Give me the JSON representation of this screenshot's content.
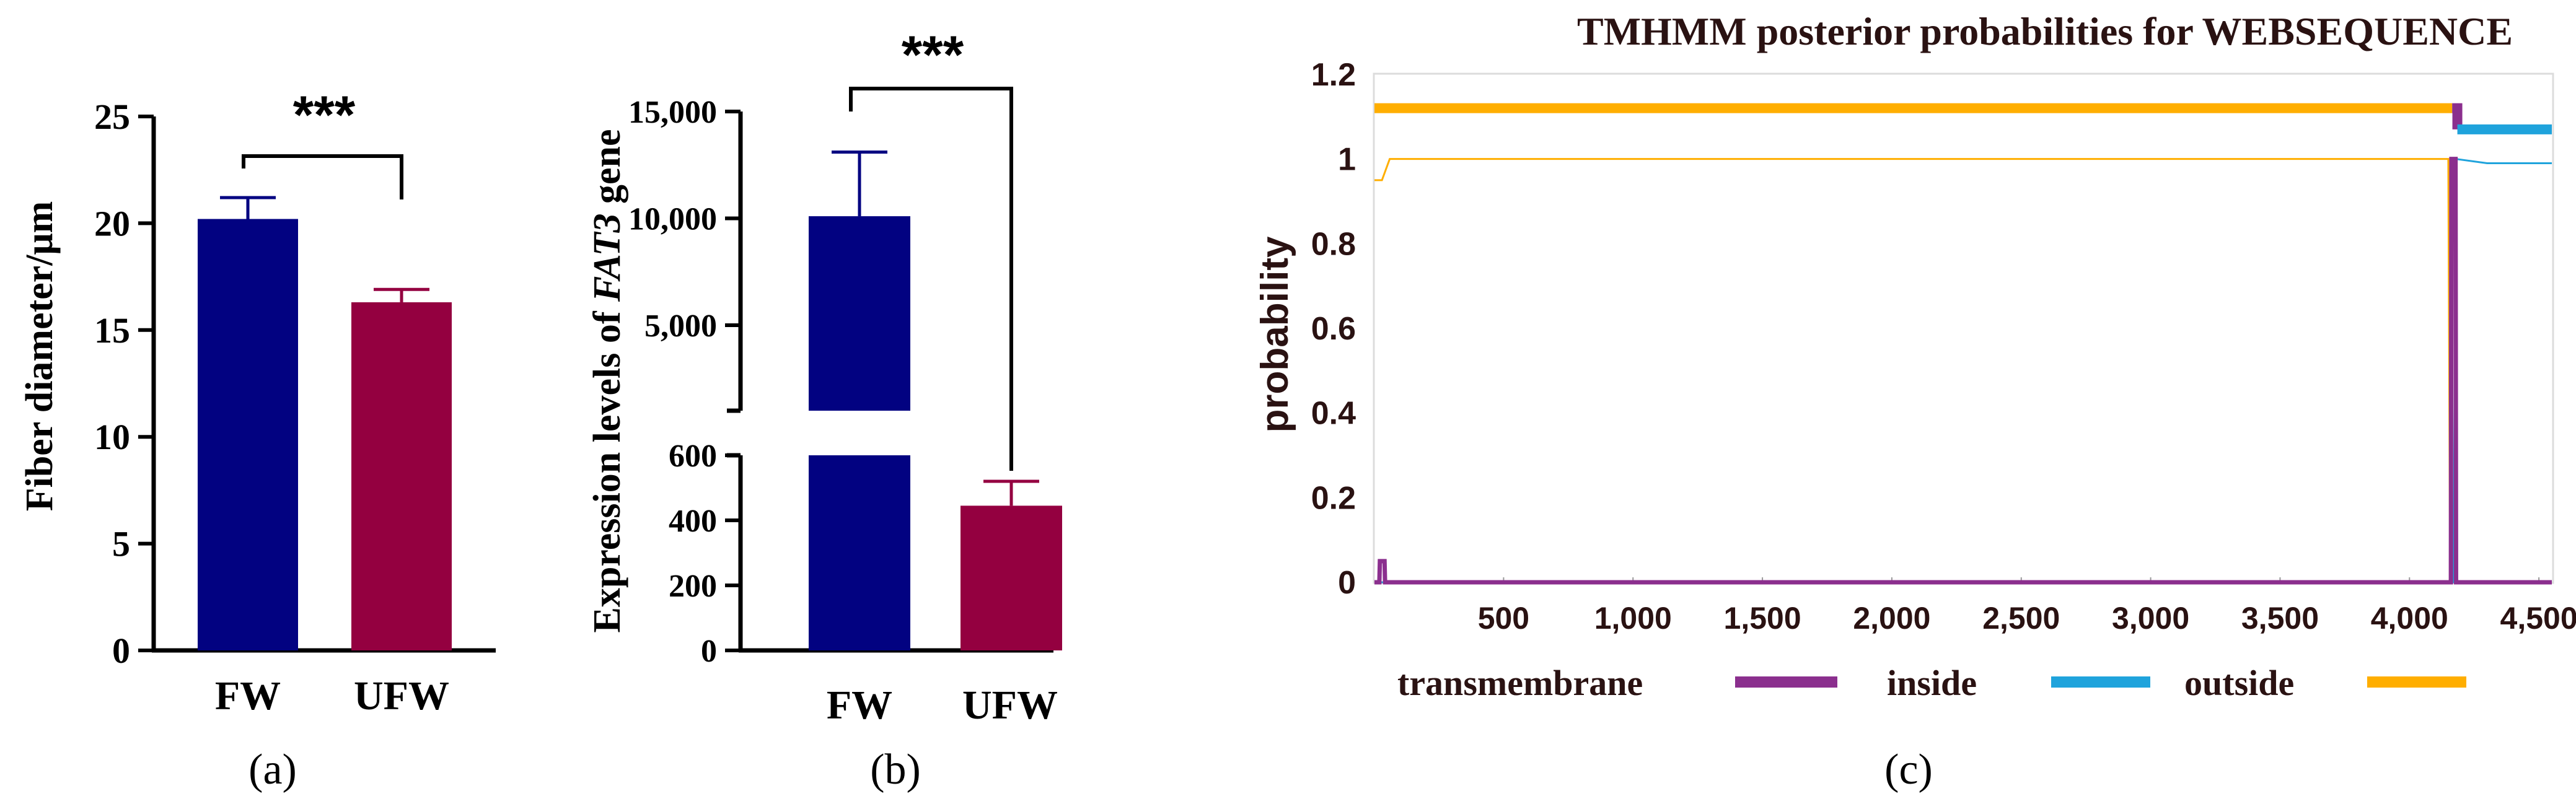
{
  "colors": {
    "fw": "#020281",
    "ufw": "#940040",
    "axis": "#000000",
    "tm": "#8b2f8e",
    "inside": "#1fa3dc",
    "outside": "#ffae00",
    "title_text": "#2a1212"
  },
  "panels": {
    "a": {
      "label": "(a)"
    },
    "b": {
      "label": "(b)"
    },
    "c": {
      "label": "(c)"
    }
  },
  "chart_data": [
    {
      "id": "a",
      "type": "bar",
      "title": "",
      "xlabel": "",
      "ylabel": "Fiber diameter/μm",
      "ylim": [
        0,
        25
      ],
      "yticks": [
        0,
        5,
        10,
        15,
        20,
        25
      ],
      "ytick_labels": [
        "0",
        "5",
        "10",
        "15",
        "20",
        "25"
      ],
      "categories": [
        "FW",
        "UFW"
      ],
      "values": [
        20.2,
        16.3
      ],
      "errors": [
        1.0,
        0.6
      ],
      "significance": "***"
    },
    {
      "id": "b",
      "type": "bar",
      "title": "",
      "xlabel": "",
      "ylabel_prefix": "Expression levels of ",
      "ylabel_gene": "FAT3",
      "ylabel_suffix": " gene",
      "axis_break": true,
      "upper_ylim": [
        1000,
        15000
      ],
      "upper_ticks": [
        5000,
        10000,
        15000
      ],
      "upper_tick_labels": [
        "5,000",
        "10,000",
        "15,000"
      ],
      "lower_ylim": [
        0,
        600
      ],
      "lower_ticks": [
        0,
        200,
        400,
        600
      ],
      "lower_tick_labels": [
        "0",
        "200",
        "400",
        "600"
      ],
      "categories": [
        "FW",
        "UFW"
      ],
      "values": [
        10100,
        445
      ],
      "errors": [
        3000,
        75
      ],
      "significance": "***"
    },
    {
      "id": "c",
      "type": "line",
      "title": "TMHMM posterior probabilities for WEBSEQUENCE",
      "xlabel": "",
      "ylabel": "probability",
      "xlim": [
        1,
        4550
      ],
      "ylim": [
        0,
        1.2
      ],
      "xticks": [
        500,
        1000,
        1500,
        2000,
        2500,
        3000,
        3500,
        4000,
        4500
      ],
      "xtick_labels": [
        "500",
        "1,000",
        "1,500",
        "2,000",
        "2,500",
        "3,000",
        "3,500",
        "4,000",
        "4,500"
      ],
      "yticks": [
        0,
        0.2,
        0.4,
        0.6,
        0.8,
        1,
        1.2
      ],
      "ytick_labels": [
        "0",
        "0.2",
        "0.4",
        "0.6",
        "0.8",
        "1",
        "1.2"
      ],
      "legend": [
        "transmembrane",
        "inside",
        "outside"
      ],
      "series": [
        {
          "name": "outside",
          "x": [
            1,
            30,
            60,
            4150,
            4157,
            4550
          ],
          "y": [
            0.95,
            0.95,
            1.0,
            1.0,
            0.0,
            0.0
          ]
        },
        {
          "name": "inside",
          "x": [
            1,
            4170,
            4180,
            4300,
            4550
          ],
          "y": [
            0.0,
            0.0,
            1.0,
            0.99,
            0.99
          ]
        },
        {
          "name": "transmembrane",
          "x": [
            1,
            20,
            22,
            40,
            42,
            4160,
            4162,
            4178,
            4180,
            4550
          ],
          "y": [
            0.0,
            0.0,
            0.05,
            0.05,
            0.0,
            0.0,
            1.0,
            1.0,
            0.0,
            0.0
          ]
        },
        {
          "name": "outside_topology",
          "x": [
            1,
            4165
          ],
          "y": [
            1.12,
            1.12
          ]
        },
        {
          "name": "transmembrane_topology",
          "x": [
            4165,
            4185
          ],
          "y": [
            1.12,
            1.1
          ]
        },
        {
          "name": "inside_topology",
          "x": [
            4185,
            4550
          ],
          "y": [
            1.07,
            1.07
          ]
        }
      ]
    }
  ]
}
